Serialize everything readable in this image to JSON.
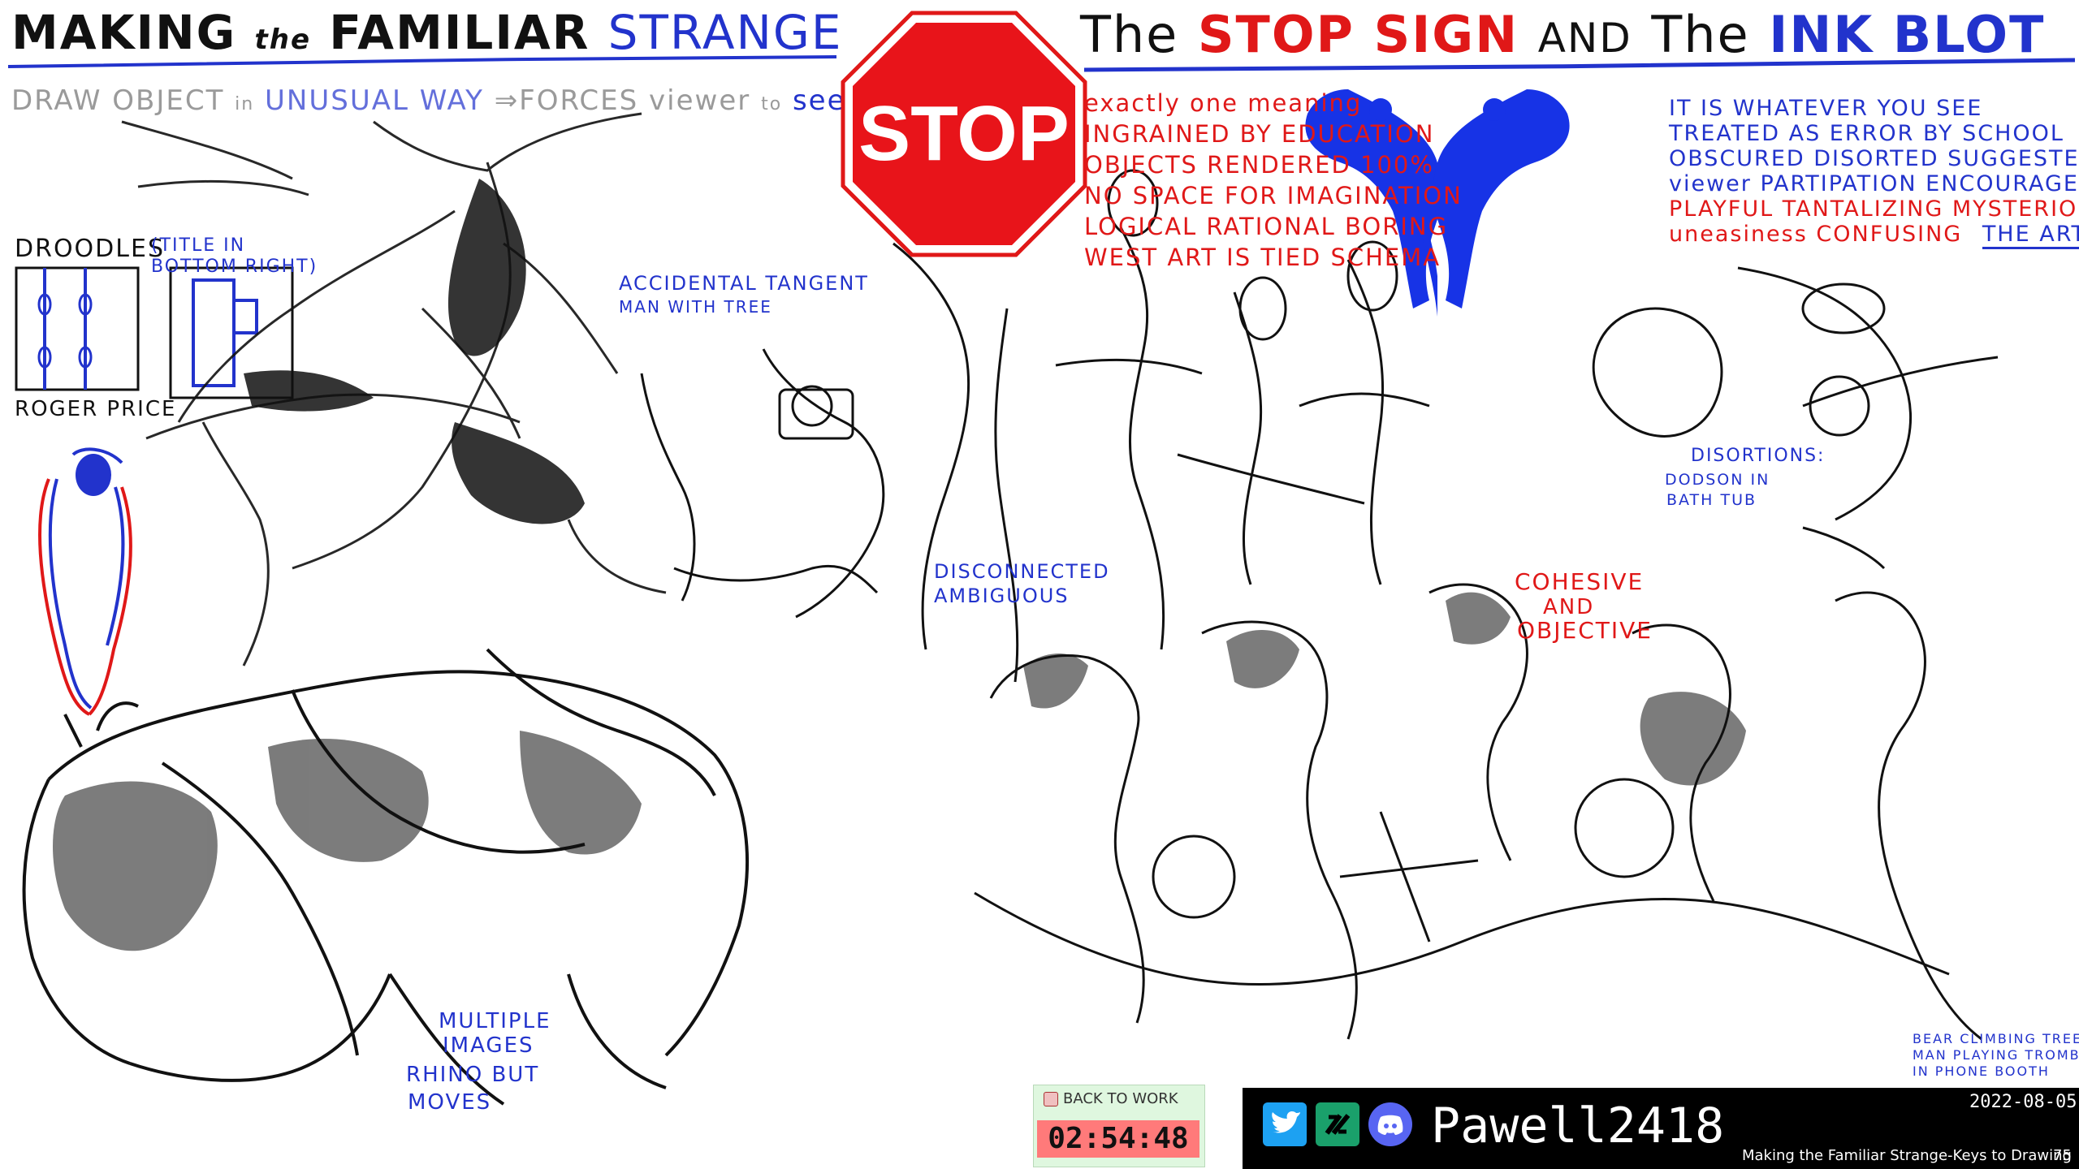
{
  "title_left": {
    "part1": "MAKING",
    "part2": "the",
    "part3": "FAMILIAR",
    "part4": "STRANGE"
  },
  "subtitle": {
    "part1": "DRAW OBJECT",
    "part2": "in",
    "part3": "UNUSUAL WAY",
    "part4": "⇒FORCES",
    "part5": "viewer",
    "part6": "to",
    "part7": "see"
  },
  "title_right": {
    "part1": "The",
    "part2": "STOP SIGN",
    "part3": "AND",
    "part4": "The",
    "part5": "INK BLOT"
  },
  "stop_sign": {
    "text": "STOP"
  },
  "stop_notes": [
    "exactly one meaning",
    "INGRAINED BY EDUCATION",
    "OBJECTS RENDERED 100%",
    "NO SPACE FOR IMAGINATION",
    "LOGICAL RATIONAL BORING",
    "WEST ART IS TIED SCHEMA"
  ],
  "inkblot_notes": [
    "IT IS WHATEVER YOU SEE",
    "TREATED AS ERROR BY SCHOOL",
    "OBSCURED DISORTED SUGGESTED",
    "viewer PARTIPATION ENCOURAGED",
    "PLAYFUL TANTALIZING MYSTERIOUS",
    "uneasiness CONFUSING",
    "THE ART"
  ],
  "labels": {
    "droodles": "DROODLES",
    "title_hint": "(TITLE IN BOTTOM RIGHT)",
    "roger_price": "ROGER PRICE",
    "accidental_tangent": "ACCIDENTAL TANGENT",
    "man_with_tree": "MAN WITH TREE",
    "disconnected": "DISCONNECTED",
    "ambiguous": "AMBIGUOUS",
    "multiple_images": "MULTIPLE",
    "images": "IMAGES",
    "rhino_but": "RHINO BUT",
    "moves": "MOVES",
    "disortions": "DISORTIONS:",
    "dodson_in": "DODSON IN",
    "bath_tub": "BATH TUB",
    "cohesive": "COHESIVE",
    "and": "AND",
    "objective": "OBJECTIVE",
    "bear_climbing": "BEAR CLIMBING TREE",
    "man_trombone": "MAN PLAYING TROMBONE",
    "phone_booth": "IN PHONE BOOTH"
  },
  "timer": {
    "label": "BACK TO WORK",
    "value": "02:54:48"
  },
  "footer": {
    "handle": "Pawell2418",
    "date": "2022-08-05",
    "caption": "Making the Familiar Strange-Keys to Drawing",
    "page": "75",
    "icons": [
      "twitter-icon",
      "streamlabs-icon",
      "discord-icon",
      "gimp-mascot-icon",
      "signature"
    ]
  },
  "colors": {
    "red": "#e01818",
    "blue": "#2233cc",
    "black": "#111111",
    "gray": "#9a9a9a"
  }
}
